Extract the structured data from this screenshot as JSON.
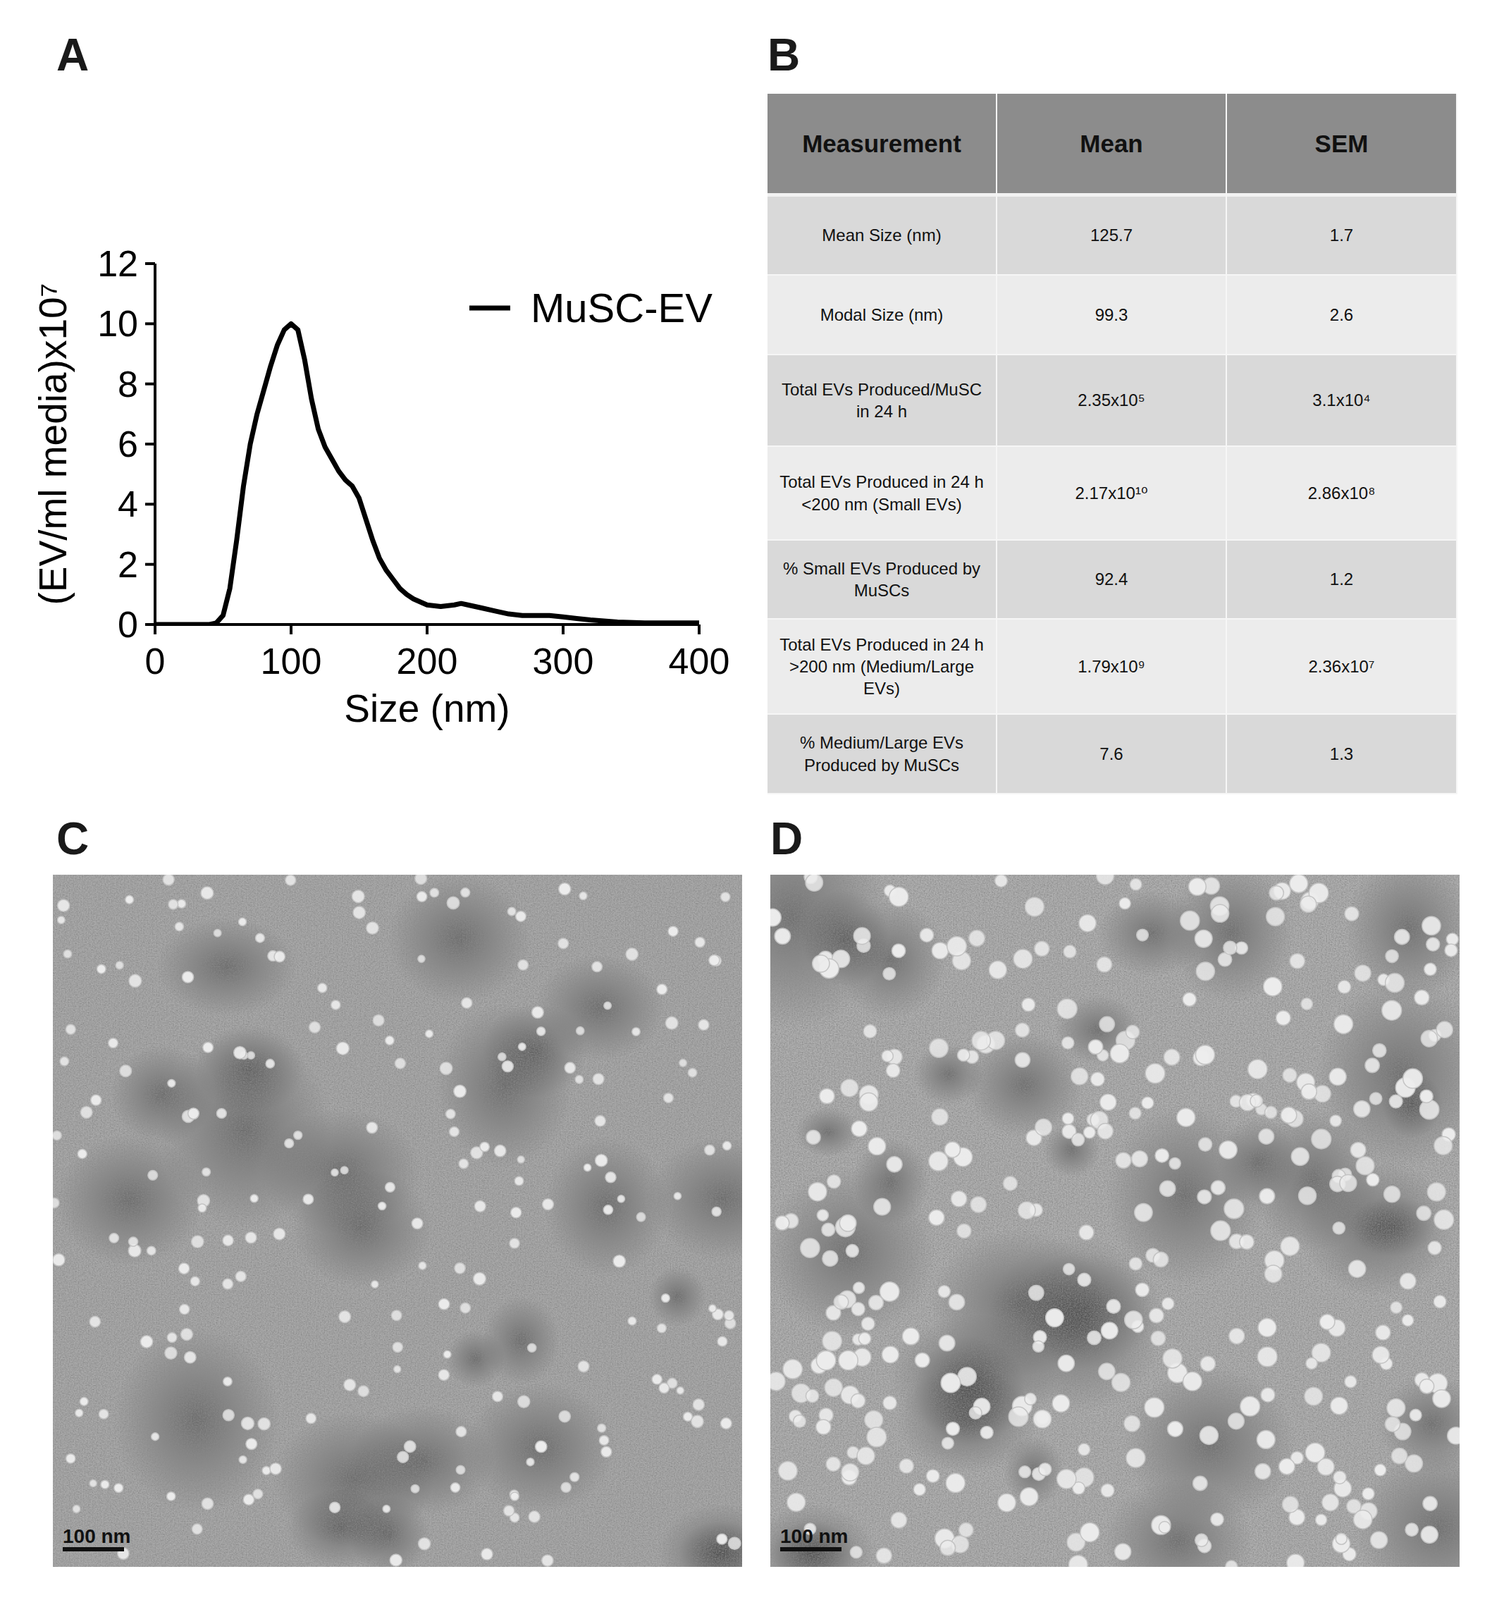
{
  "panel_labels": [
    "A",
    "B",
    "C",
    "D"
  ],
  "chart_data": {
    "type": "line",
    "x_label": "Size (nm)",
    "y_label": "(EV/ml media)x10⁷",
    "x": [
      0,
      20,
      40,
      45,
      50,
      55,
      60,
      65,
      70,
      75,
      80,
      85,
      90,
      95,
      100,
      105,
      110,
      115,
      120,
      125,
      130,
      135,
      140,
      145,
      150,
      155,
      160,
      165,
      170,
      175,
      180,
      185,
      190,
      195,
      200,
      210,
      220,
      225,
      230,
      240,
      250,
      260,
      270,
      280,
      290,
      300,
      310,
      320,
      340,
      360,
      380,
      400
    ],
    "series": [
      {
        "name": "MuSC-EV",
        "color": "#000000",
        "line_style": "solid",
        "values": [
          0,
          0,
          0,
          0.05,
          0.3,
          1.2,
          2.8,
          4.6,
          6.0,
          7.0,
          7.8,
          8.6,
          9.3,
          9.8,
          10.0,
          9.8,
          8.8,
          7.5,
          6.5,
          5.9,
          5.5,
          5.1,
          4.8,
          4.6,
          4.2,
          3.5,
          2.8,
          2.2,
          1.8,
          1.5,
          1.2,
          1.0,
          0.85,
          0.75,
          0.65,
          0.6,
          0.65,
          0.7,
          0.65,
          0.55,
          0.45,
          0.35,
          0.3,
          0.3,
          0.3,
          0.25,
          0.2,
          0.15,
          0.08,
          0.05,
          0.05,
          0.05
        ]
      }
    ],
    "xlim": [
      0,
      400
    ],
    "xticks": [
      0,
      100,
      200,
      300,
      400
    ],
    "ylim": [
      0,
      12
    ],
    "yticks": [
      0,
      2,
      4,
      6,
      8,
      10,
      12
    ],
    "grid": false,
    "legend": "upper right"
  },
  "table": {
    "header": [
      "Measurement",
      "Mean",
      "SEM"
    ],
    "rows": [
      [
        "Mean Size (nm)",
        "125.7",
        "1.7"
      ],
      [
        "Modal Size (nm)",
        "99.3",
        "2.6"
      ],
      [
        "Total EVs Produced/MuSC in 24 h",
        "2.35x10⁵",
        "3.1x10⁴"
      ],
      [
        "Total EVs Produced in 24 h <200 nm (Small EVs)",
        "2.17x10¹⁰",
        "2.86x10⁸"
      ],
      [
        "% Small EVs Produced by MuSCs",
        "92.4",
        "1.2"
      ],
      [
        "Total EVs Produced in 24 h >200 nm (Medium/Large EVs)",
        "1.79x10⁹",
        "2.36x10⁷"
      ],
      [
        "% Medium/Large EVs Produced by MuSCs",
        "7.6",
        "1.3"
      ]
    ]
  },
  "images": [
    {
      "scale_bar": "100 nm"
    },
    {
      "scale_bar": "100 nm"
    }
  ]
}
